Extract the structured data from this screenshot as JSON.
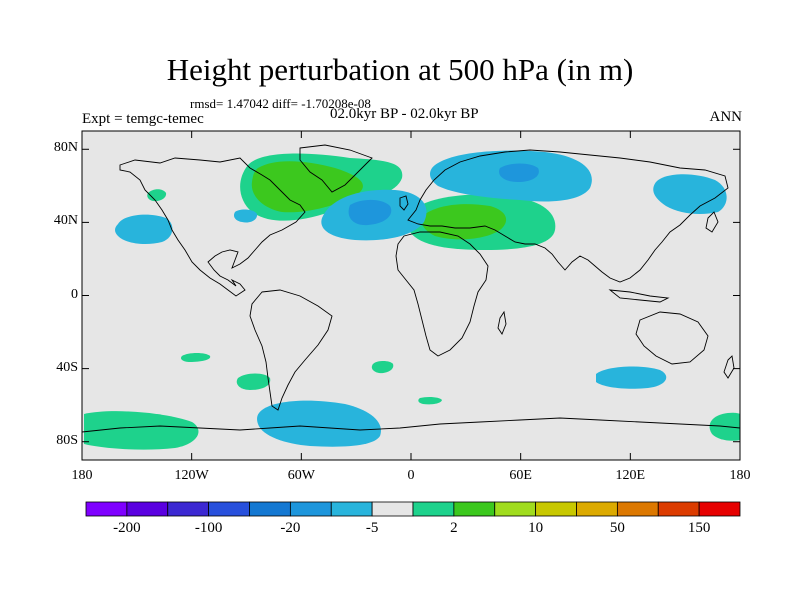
{
  "title": "Height perturbation at 500 hPa (in m)",
  "subtitle": "rmsd= 1.47042 diff= -1.70208e-08",
  "left_string": "Expt = temgc-temec",
  "center_string": "02.0kyr BP - 02.0kyr BP",
  "right_string": "ANN",
  "map": {
    "lon_range": [
      -180,
      180
    ],
    "lat_range": [
      -90,
      90
    ],
    "x_ticks": [
      {
        "lon": -180,
        "label": "180"
      },
      {
        "lon": -120,
        "label": "120W"
      },
      {
        "lon": -60,
        "label": "60W"
      },
      {
        "lon": 0,
        "label": "0"
      },
      {
        "lon": 60,
        "label": "60E"
      },
      {
        "lon": 120,
        "label": "120E"
      },
      {
        "lon": 180,
        "label": "180"
      }
    ],
    "y_ticks": [
      {
        "lat": 80,
        "label": "80N"
      },
      {
        "lat": 40,
        "label": "40N"
      },
      {
        "lat": 0,
        "label": "0"
      },
      {
        "lat": -40,
        "label": "40S"
      },
      {
        "lat": -80,
        "label": "80S"
      }
    ],
    "background_color": "#e6e6e6",
    "coastline_color": "#000000"
  },
  "colorbar": {
    "colors": [
      "#7f00ff",
      "#5a00e0",
      "#3c28d2",
      "#2850dc",
      "#1478d2",
      "#1e96dc",
      "#28b4dc",
      "#e6e6e6",
      "#1ed28c",
      "#3cc81e",
      "#a0dc1e",
      "#c8c800",
      "#dcaa00",
      "#dc7800",
      "#dc3c00",
      "#e60000"
    ],
    "labels": [
      {
        "index": 1,
        "label": "-200"
      },
      {
        "index": 3,
        "label": "-100"
      },
      {
        "index": 5,
        "label": "-20"
      },
      {
        "index": 7,
        "label": "-5"
      },
      {
        "index": 9,
        "label": "2"
      },
      {
        "index": 11,
        "label": "10"
      },
      {
        "index": 13,
        "label": "50"
      },
      {
        "index": 15,
        "label": "150"
      }
    ]
  }
}
